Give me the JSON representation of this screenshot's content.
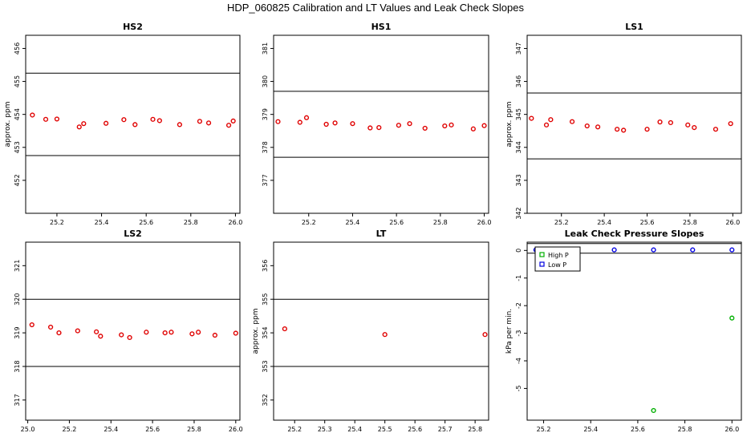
{
  "title": "HDP_060825  Calibration and LT Values and Leak Check Slopes",
  "chart_data": [
    {
      "type": "scatter",
      "title": "HS2",
      "ylabel": "approx. ppm",
      "xlim": [
        25.06,
        26.02
      ],
      "ylim": [
        451.0,
        456.4
      ],
      "xticks": [
        "25.2",
        "25.4",
        "25.6",
        "25.8",
        "26.0"
      ],
      "yticks": [
        "452",
        "453",
        "454",
        "455",
        "456"
      ],
      "hlines": [
        455.25,
        452.75
      ],
      "color": "#e00000",
      "points": [
        [
          25.09,
          453.98
        ],
        [
          25.15,
          453.85
        ],
        [
          25.2,
          453.86
        ],
        [
          25.3,
          453.62
        ],
        [
          25.32,
          453.72
        ],
        [
          25.42,
          453.73
        ],
        [
          25.5,
          453.84
        ],
        [
          25.55,
          453.69
        ],
        [
          25.63,
          453.85
        ],
        [
          25.66,
          453.81
        ],
        [
          25.75,
          453.69
        ],
        [
          25.84,
          453.79
        ],
        [
          25.88,
          453.74
        ],
        [
          25.97,
          453.67
        ],
        [
          25.99,
          453.8
        ]
      ]
    },
    {
      "type": "scatter",
      "title": "HS1",
      "ylabel": "",
      "xlim": [
        25.04,
        26.02
      ],
      "ylim": [
        376.0,
        381.4
      ],
      "xticks": [
        "25.2",
        "25.4",
        "25.6",
        "25.8",
        "26.0"
      ],
      "yticks": [
        "377",
        "378",
        "379",
        "380",
        "381"
      ],
      "hlines": [
        379.7,
        377.7
      ],
      "color": "#e00000",
      "points": [
        [
          25.06,
          378.78
        ],
        [
          25.16,
          378.76
        ],
        [
          25.19,
          378.9
        ],
        [
          25.28,
          378.7
        ],
        [
          25.32,
          378.74
        ],
        [
          25.4,
          378.72
        ],
        [
          25.48,
          378.59
        ],
        [
          25.52,
          378.6
        ],
        [
          25.61,
          378.67
        ],
        [
          25.66,
          378.72
        ],
        [
          25.73,
          378.58
        ],
        [
          25.82,
          378.65
        ],
        [
          25.85,
          378.68
        ],
        [
          25.95,
          378.56
        ],
        [
          26.0,
          378.66
        ]
      ]
    },
    {
      "type": "scatter",
      "title": "LS1",
      "ylabel": "approx. ppm",
      "xlim": [
        25.04,
        26.04
      ],
      "ylim": [
        342.0,
        347.4
      ],
      "xticks": [
        "25.2",
        "25.4",
        "25.6",
        "25.8",
        "26.0"
      ],
      "yticks": [
        "342",
        "343",
        "344",
        "345",
        "346",
        "347"
      ],
      "hlines": [
        345.65,
        343.65
      ],
      "color": "#e00000",
      "points": [
        [
          25.06,
          344.88
        ],
        [
          25.13,
          344.68
        ],
        [
          25.15,
          344.84
        ],
        [
          25.25,
          344.78
        ],
        [
          25.32,
          344.65
        ],
        [
          25.37,
          344.62
        ],
        [
          25.46,
          344.55
        ],
        [
          25.49,
          344.52
        ],
        [
          25.6,
          344.55
        ],
        [
          25.66,
          344.77
        ],
        [
          25.71,
          344.75
        ],
        [
          25.79,
          344.68
        ],
        [
          25.82,
          344.6
        ],
        [
          25.92,
          344.55
        ],
        [
          25.99,
          344.72
        ]
      ]
    },
    {
      "type": "scatter",
      "title": "LS2",
      "ylabel": "",
      "xlim": [
        24.99,
        26.02
      ],
      "ylim": [
        316.4,
        321.7
      ],
      "xticks": [
        "25.0",
        "25.2",
        "25.4",
        "25.6",
        "25.8",
        "26.0"
      ],
      "yticks": [
        "317",
        "318",
        "319",
        "320",
        "321"
      ],
      "hlines": [
        320.0,
        318.0
      ],
      "color": "#e00000",
      "points": [
        [
          25.02,
          319.24
        ],
        [
          25.11,
          319.17
        ],
        [
          25.15,
          319.0
        ],
        [
          25.24,
          319.06
        ],
        [
          25.33,
          319.03
        ],
        [
          25.35,
          318.9
        ],
        [
          25.45,
          318.94
        ],
        [
          25.49,
          318.86
        ],
        [
          25.57,
          319.02
        ],
        [
          25.66,
          319.0
        ],
        [
          25.69,
          319.02
        ],
        [
          25.79,
          318.97
        ],
        [
          25.82,
          319.02
        ],
        [
          25.9,
          318.93
        ],
        [
          26.0,
          318.99
        ]
      ]
    },
    {
      "type": "scatter",
      "title": "LT",
      "ylabel": "approx. ppm",
      "xlim": [
        25.13,
        25.845
      ],
      "ylim": [
        351.4,
        356.7
      ],
      "xticks": [
        "25.2",
        "25.3",
        "25.4",
        "25.5",
        "25.6",
        "25.7",
        "25.8"
      ],
      "yticks": [
        "352",
        "353",
        "354",
        "355",
        "356"
      ],
      "hlines": [
        355.0,
        353.0
      ],
      "color": "#e00000",
      "points": [
        [
          25.167,
          354.12
        ],
        [
          25.5,
          353.95
        ],
        [
          25.833,
          353.95
        ]
      ]
    },
    {
      "type": "scatter",
      "title": "Leak Check Pressure Slopes",
      "ylabel": "kPa per min.",
      "xlim": [
        25.13,
        26.04
      ],
      "ylim": [
        -6.15,
        0.3
      ],
      "xticks": [
        "25.2",
        "25.4",
        "25.6",
        "25.8",
        "26.0"
      ],
      "yticks": [
        "-5",
        "-4",
        "-3",
        "-2",
        "-1",
        "0"
      ],
      "hlines": [
        0.25,
        -0.1
      ],
      "legend": {
        "position": "top-left",
        "entries": [
          {
            "label": "High P",
            "color": "#00b000"
          },
          {
            "label": "Low P",
            "color": "#0000e0"
          }
        ]
      },
      "series": [
        {
          "name": "High P",
          "color": "#00b000",
          "points": [
            [
              25.333,
              -0.02
            ],
            [
              25.667,
              -5.8
            ],
            [
              26.0,
              -2.45
            ]
          ]
        },
        {
          "name": "Low P",
          "color": "#0000e0",
          "points": [
            [
              25.167,
              0.02
            ],
            [
              25.333,
              0.02
            ],
            [
              25.5,
              0.02
            ],
            [
              25.667,
              0.02
            ],
            [
              25.833,
              0.02
            ],
            [
              26.0,
              0.02
            ]
          ]
        }
      ]
    }
  ]
}
